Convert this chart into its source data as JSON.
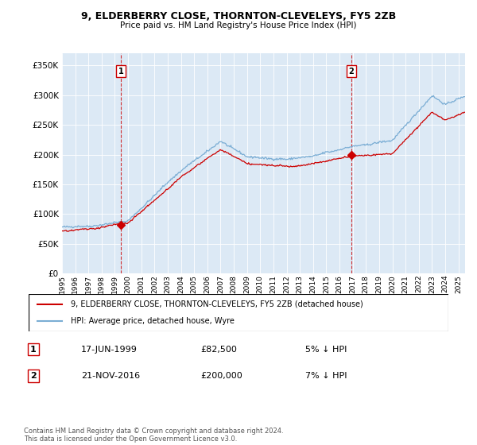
{
  "title": "9, ELDERBERRY CLOSE, THORNTON-CLEVELEYS, FY5 2ZB",
  "subtitle": "Price paid vs. HM Land Registry's House Price Index (HPI)",
  "ytick_values": [
    0,
    50000,
    100000,
    150000,
    200000,
    250000,
    300000,
    350000
  ],
  "ylim": [
    0,
    370000
  ],
  "hpi_color": "#7aadd4",
  "price_color": "#cc0000",
  "marker_color": "#cc0000",
  "vline_color": "#cc0000",
  "plot_bg_color": "#dce9f5",
  "background_color": "#ffffff",
  "grid_color": "#ffffff",
  "legend_label_price": "9, ELDERBERRY CLOSE, THORNTON-CLEVELEYS, FY5 2ZB (detached house)",
  "legend_label_hpi": "HPI: Average price, detached house, Wyre",
  "footnote": "Contains HM Land Registry data © Crown copyright and database right 2024.\nThis data is licensed under the Open Government Licence v3.0.",
  "sale1_label": "1",
  "sale1_date": "17-JUN-1999",
  "sale1_price": "£82,500",
  "sale1_hpi": "5% ↓ HPI",
  "sale1_year": 1999.46,
  "sale1_value": 82500,
  "sale2_label": "2",
  "sale2_date": "21-NOV-2016",
  "sale2_price": "£200,000",
  "sale2_hpi": "7% ↓ HPI",
  "sale2_year": 2016.89,
  "sale2_value": 200000,
  "xstart": 1995,
  "xend": 2025.5
}
